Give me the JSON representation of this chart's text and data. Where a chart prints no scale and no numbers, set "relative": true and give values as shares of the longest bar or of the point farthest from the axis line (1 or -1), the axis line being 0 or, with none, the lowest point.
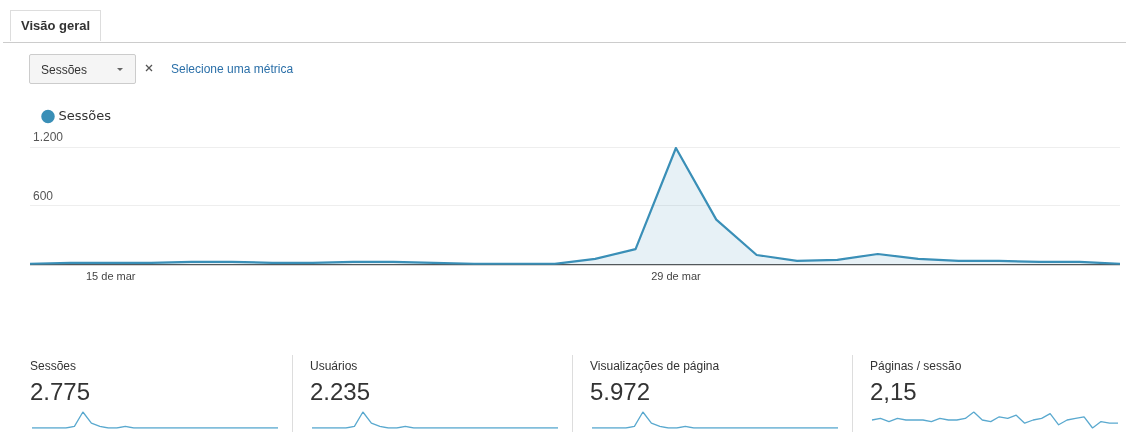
{
  "chart_data": [
    {
      "type": "area",
      "annotations": [
        "Visão geral",
        "Sessões",
        "Selecione uma métrica"
      ],
      "categories": [
        null,
        null,
        "15 de mar",
        null,
        null,
        null,
        null,
        null,
        null,
        null,
        null,
        null,
        null,
        null,
        null,
        null,
        "29 de mar",
        null,
        null,
        null,
        null,
        null,
        null,
        null,
        null,
        null,
        null,
        null
      ],
      "series": [
        {
          "name": "Sessões",
          "color": "#3a8fb7",
          "values": [
            10,
            20,
            20,
            20,
            30,
            30,
            20,
            20,
            30,
            30,
            20,
            10,
            10,
            10,
            60,
            160,
            1190,
            460,
            100,
            40,
            50,
            110,
            60,
            40,
            40,
            30,
            30,
            10
          ]
        }
      ],
      "ylim": [
        0,
        1200
      ],
      "yticks": [
        {
          "value": 0,
          "label": null
        },
        {
          "value": 600,
          "label": "600"
        },
        {
          "value": 1200,
          "label": "1.200"
        }
      ],
      "grid": "y",
      "legend": "top left",
      "marker": "none"
    },
    {
      "type": "line",
      "relative": true,
      "tick_labels": false,
      "title": "Sessões",
      "subtitle": "2.775",
      "categories": [
        null,
        null,
        null,
        null,
        null,
        null,
        null,
        null,
        null,
        null,
        null,
        null,
        null,
        null,
        null,
        null,
        null,
        null,
        null,
        null,
        null,
        null,
        null,
        null,
        null,
        null,
        null,
        null,
        null,
        null
      ],
      "series": [
        {
          "color": "#5aa9cf",
          "values": [
            0,
            0,
            0,
            0,
            0,
            0.1,
            1,
            0.3,
            0.1,
            0,
            0,
            0.1,
            0,
            0,
            0,
            0,
            0,
            0,
            0,
            0,
            0,
            0,
            0,
            0,
            0,
            0,
            0,
            0,
            0,
            0
          ]
        }
      ]
    },
    {
      "type": "line",
      "relative": true,
      "tick_labels": false,
      "title": "Usuários",
      "subtitle": "2.235",
      "categories": [
        null,
        null,
        null,
        null,
        null,
        null,
        null,
        null,
        null,
        null,
        null,
        null,
        null,
        null,
        null,
        null,
        null,
        null,
        null,
        null,
        null,
        null,
        null,
        null,
        null,
        null,
        null,
        null,
        null,
        null
      ],
      "series": [
        {
          "color": "#5aa9cf",
          "values": [
            0,
            0,
            0,
            0,
            0,
            0.1,
            1,
            0.3,
            0.1,
            0,
            0,
            0.1,
            0,
            0,
            0,
            0,
            0,
            0,
            0,
            0,
            0,
            0,
            0,
            0,
            0,
            0,
            0,
            0,
            0,
            0
          ]
        }
      ]
    },
    {
      "type": "line",
      "relative": true,
      "tick_labels": false,
      "title": "Visualizações de página",
      "subtitle": "5.972",
      "categories": [
        null,
        null,
        null,
        null,
        null,
        null,
        null,
        null,
        null,
        null,
        null,
        null,
        null,
        null,
        null,
        null,
        null,
        null,
        null,
        null,
        null,
        null,
        null,
        null,
        null,
        null,
        null,
        null,
        null,
        null
      ],
      "series": [
        {
          "color": "#5aa9cf",
          "values": [
            0,
            0,
            0,
            0,
            0,
            0.1,
            1,
            0.3,
            0.1,
            0,
            0,
            0.1,
            0,
            0,
            0,
            0,
            0,
            0,
            0,
            0,
            0,
            0,
            0,
            0,
            0,
            0,
            0,
            0,
            0,
            0
          ]
        }
      ]
    },
    {
      "type": "line",
      "relative": true,
      "tick_labels": false,
      "title": "Páginas / sessão",
      "subtitle": "2,15",
      "categories": [
        null,
        null,
        null,
        null,
        null,
        null,
        null,
        null,
        null,
        null,
        null,
        null,
        null,
        null,
        null,
        null,
        null,
        null,
        null,
        null,
        null,
        null,
        null,
        null,
        null,
        null,
        null,
        null,
        null,
        null
      ],
      "series": [
        {
          "color": "#5aa9cf",
          "values": [
            0.5,
            0.6,
            0.4,
            0.6,
            0.5,
            0.5,
            0.5,
            0.4,
            0.6,
            0.5,
            0.5,
            0.6,
            1,
            0.5,
            0.4,
            0.7,
            0.6,
            0.8,
            0.3,
            0.5,
            0.6,
            0.9,
            0.2,
            0.5,
            0.6,
            0.7,
            0,
            0.4,
            0.3,
            0.3
          ]
        }
      ]
    }
  ]
}
